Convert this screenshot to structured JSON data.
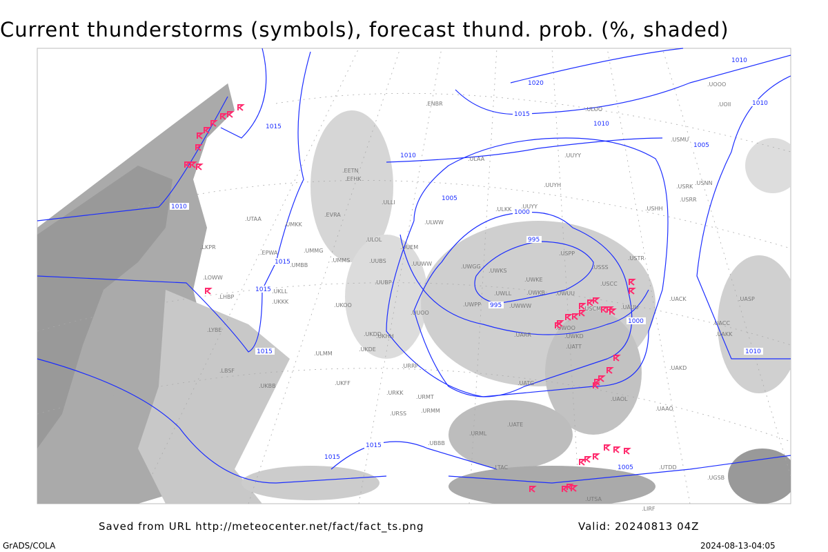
{
  "title": "Current thunderstorms (symbols), forecast thund. prob. (%, shaded)",
  "footer": {
    "source": "Saved from URL http://meteocenter.net/fact/fact_ts.png",
    "valid": "Valid: 20240813 04Z",
    "software": "GrADS/COLA",
    "timestamp": "2024-08-13-04:05"
  },
  "colors": {
    "isobar": "#1a2cff",
    "thunderstorm_symbol": "#ff2a6d",
    "shading": "#c8c8c8",
    "coastline": "#999999"
  },
  "isobar_labels": [
    "1020",
    "1015",
    "1015",
    "1015",
    "1015",
    "1015",
    "1015",
    "1015",
    "1010",
    "1010",
    "1010",
    "1010",
    "1010",
    "1010",
    "1005",
    "1005",
    "1005",
    "1000",
    "1000",
    "995",
    "995"
  ],
  "stations": [
    "ULKK",
    "UUYY",
    "ULWW",
    "UWGG",
    "UWKS",
    "UWKE",
    "UWLL",
    "UWKB",
    "UWUU",
    "UWPP",
    "UWWW",
    "USPP",
    "USSS",
    "USCC",
    "USTR",
    "UAUU",
    "USCM",
    "UWOO",
    "UARR",
    "UATT",
    "UWKD",
    "UUOO",
    "UUWW",
    "UUEM",
    "ULOL",
    "UUBS",
    "UUBP",
    "UMMG",
    "UMKK",
    "EVRA",
    "ULLI",
    "EFHK",
    "EETN",
    "ULAA",
    "UUYH",
    "UUYY",
    "USHH",
    "USRR",
    "USRK",
    "USNN",
    "USMU",
    "ULOO",
    "UOII",
    "UOOO",
    "UACC",
    "UAKK",
    "UACK",
    "UASP",
    "UATG",
    "UAOL",
    "UAAO",
    "UAKD",
    "UATE",
    "URML",
    "URMM",
    "URMT",
    "URSS",
    "URKK",
    "URRP",
    "UKHH",
    "UKDD",
    "UKDE",
    "UKFF",
    "UKBB",
    "LBSF",
    "LYBE",
    "LHBP",
    "LOWW",
    "LKPR",
    "EPWA",
    "UMMS",
    "UMBB",
    "UKLL",
    "UKKK",
    "UKOO",
    "ULMM",
    "ENBR",
    "UTAA",
    "UTSA",
    "UTDD",
    "UGSB",
    "UBBB",
    "LTAC",
    "LIRF"
  ],
  "legend_note": ""
}
